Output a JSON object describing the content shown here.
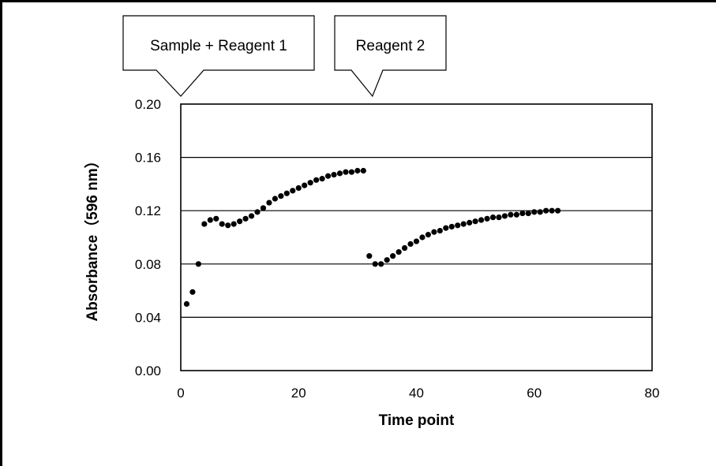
{
  "chart_data": {
    "type": "scatter",
    "xlabel": "Time point",
    "ylabel": "Absorbance（596 nm）",
    "xlim": [
      0,
      80
    ],
    "ylim": [
      0,
      0.2
    ],
    "xticks": [
      "0",
      "20",
      "40",
      "60",
      "80"
    ],
    "yticks": [
      "0.00",
      "0.04",
      "0.08",
      "0.12",
      "0.16",
      "0.20"
    ],
    "grid": "horizontal",
    "legend": "none",
    "marker_color": "#000000",
    "annotations": [
      {
        "text": "Sample + Reagent 1",
        "x": 0
      },
      {
        "text": "Reagent 2",
        "x": 32
      }
    ],
    "series": [
      {
        "x": [
          1,
          2,
          3,
          4,
          5,
          6,
          7,
          8,
          9,
          10,
          11,
          12,
          13,
          14,
          15,
          16,
          17,
          18,
          19,
          20,
          21,
          22,
          23,
          24,
          25,
          26,
          27,
          28,
          29,
          30,
          31,
          32,
          33,
          34,
          35,
          36,
          37,
          38,
          39,
          40,
          41,
          42,
          43,
          44,
          45,
          46,
          47,
          48,
          49,
          50,
          51,
          52,
          53,
          54,
          55,
          56,
          57,
          58,
          59,
          60,
          61,
          62,
          63,
          64
        ],
        "y": [
          0.05,
          0.059,
          0.08,
          0.11,
          0.113,
          0.114,
          0.11,
          0.109,
          0.11,
          0.112,
          0.114,
          0.116,
          0.119,
          0.122,
          0.126,
          0.129,
          0.131,
          0.133,
          0.135,
          0.137,
          0.139,
          0.141,
          0.143,
          0.144,
          0.146,
          0.147,
          0.148,
          0.149,
          0.149,
          0.15,
          0.15,
          0.086,
          0.08,
          0.08,
          0.083,
          0.086,
          0.089,
          0.092,
          0.095,
          0.097,
          0.1,
          0.102,
          0.104,
          0.105,
          0.107,
          0.108,
          0.109,
          0.11,
          0.111,
          0.112,
          0.113,
          0.114,
          0.115,
          0.115,
          0.116,
          0.117,
          0.117,
          0.118,
          0.118,
          0.119,
          0.119,
          0.12,
          0.12,
          0.12
        ]
      }
    ]
  }
}
